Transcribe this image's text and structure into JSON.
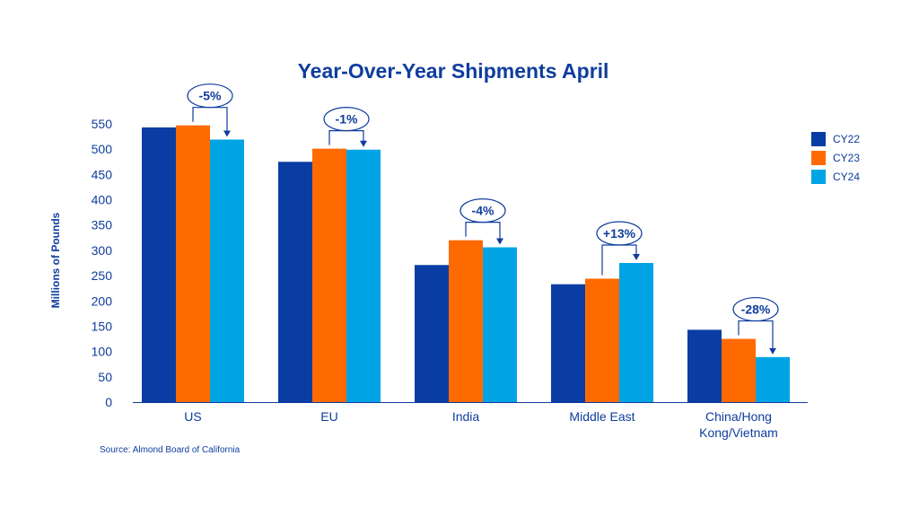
{
  "chart_data": {
    "type": "bar",
    "title": "Year-Over-Year Shipments April",
    "ylabel": "Millions of Pounds",
    "xlabel": "",
    "ylim": [
      0,
      550
    ],
    "yticks": [
      0,
      50,
      100,
      150,
      200,
      250,
      300,
      350,
      400,
      450,
      500,
      550
    ],
    "categories": [
      "US",
      "EU",
      "India",
      "Middle East",
      "China/Hong Kong/Vietnam"
    ],
    "category_label_lines": [
      [
        "US"
      ],
      [
        "EU"
      ],
      [
        "India"
      ],
      [
        "Middle East"
      ],
      [
        "China/Hong",
        "Kong/Vietnam"
      ]
    ],
    "series": [
      {
        "name": "CY22",
        "color": "#0a3da3",
        "values": [
          543,
          475,
          271,
          233,
          143
        ]
      },
      {
        "name": "CY23",
        "color": "#ff6a00",
        "values": [
          547,
          501,
          320,
          244,
          125
        ]
      },
      {
        "name": "CY24",
        "color": "#00a4e4",
        "values": [
          519,
          499,
          306,
          275,
          89
        ]
      }
    ],
    "annotations": [
      "-5%",
      "-1%",
      "-4%",
      "+13%",
      "-28%"
    ],
    "legend_position": "right",
    "grid": false
  },
  "source": "Source: Almond Board of California"
}
